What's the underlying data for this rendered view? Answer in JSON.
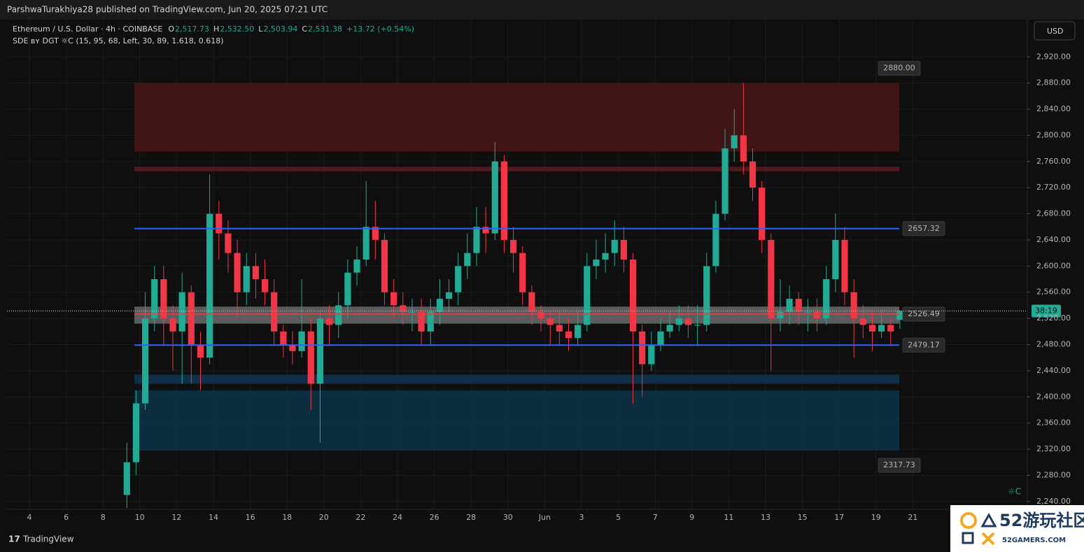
{
  "header": {
    "publisher": "ParshwaTurakhiya28 published on TradingView.com, Jun 20, 2025 07:21 UTC"
  },
  "footer": {
    "logo": "TradingView"
  },
  "watermark": {
    "brand": "52游玩社区",
    "site": "52GAMERS.COM"
  },
  "chart_data": {
    "type": "candlestick",
    "symbol": "Ethereum / U.S. Dollar · 4h · COINBASE",
    "ohlc_legend": [
      {
        "key": "O",
        "value": "2,517.73"
      },
      {
        "key": "H",
        "value": "2,532.50"
      },
      {
        "key": "L",
        "value": "2,503.94"
      },
      {
        "key": "C",
        "value": "2,531.38"
      }
    ],
    "change": "+13.72 (+0.54%)",
    "indicator": "SDE ʙʏ DGT ☼C (15, 95, 68, Left, 30, 89, 1.618, 0.618)",
    "indicator_icon": "☼C",
    "currency": "USD",
    "countdown": "38:19",
    "up_color": "#22ab94",
    "down_color": "#f23645",
    "ylim": [
      2228,
      2977
    ],
    "yticks": [
      {
        "value": 2240,
        "label": "2,240.00"
      },
      {
        "value": 2280,
        "label": "2,280.00"
      },
      {
        "value": 2320,
        "label": "2,320.00"
      },
      {
        "value": 2360,
        "label": "2,360.00"
      },
      {
        "value": 2400,
        "label": "2,400.00"
      },
      {
        "value": 2440,
        "label": "2,440.00"
      },
      {
        "value": 2480,
        "label": "2,480.00"
      },
      {
        "value": 2520,
        "label": "2,520.00"
      },
      {
        "value": 2560,
        "label": "2,560.00"
      },
      {
        "value": 2600,
        "label": "2,600.00"
      },
      {
        "value": 2640,
        "label": "2,640.00"
      },
      {
        "value": 2680,
        "label": "2,680.00"
      },
      {
        "value": 2720,
        "label": "2,720.00"
      },
      {
        "value": 2760,
        "label": "2,760.00"
      },
      {
        "value": 2800,
        "label": "2,800.00"
      },
      {
        "value": 2840,
        "label": "2,840.00"
      },
      {
        "value": 2880,
        "label": "2,880.00"
      },
      {
        "value": 2920,
        "label": "2,920.00"
      }
    ],
    "xticks": [
      "4",
      "6",
      "8",
      "10",
      "12",
      "14",
      "16",
      "18",
      "20",
      "22",
      "24",
      "26",
      "28",
      "30",
      "Jun",
      "3",
      "5",
      "7",
      "9",
      "11",
      "13",
      "15",
      "17",
      "19",
      "21"
    ],
    "grid": true,
    "zones": [
      {
        "from": 2775,
        "to": 2880,
        "color": "#4a1518"
      },
      {
        "from": 2745,
        "to": 2752,
        "color": "#5a1a1e"
      },
      {
        "from": 2512,
        "to": 2538,
        "color": "#6a6a6a"
      },
      {
        "from": 2420,
        "to": 2434,
        "color": "#0f3550"
      },
      {
        "from": 2317.73,
        "to": 2410,
        "color": "#0c3148"
      }
    ],
    "levels": [
      {
        "value": 2880,
        "label": "2880.00",
        "color": "#4a1518"
      },
      {
        "value": 2657.32,
        "label": "2657.32",
        "color": "#2962ff"
      },
      {
        "value": 2526.49,
        "label": "2526.49",
        "color": "#f23645"
      },
      {
        "value": 2479.17,
        "label": "2479.17",
        "color": "#2962ff"
      },
      {
        "value": 2317.73,
        "label": "2317.73",
        "color": "#0c3148"
      }
    ],
    "open": [
      2250,
      2300,
      2390,
      2520,
      2580,
      2520,
      2500,
      2560,
      2480,
      2460,
      2680,
      2650,
      2620,
      2560,
      2600,
      2580,
      2560,
      2500,
      2480,
      2470,
      2500,
      2420,
      2520,
      2510,
      2540,
      2590,
      2610,
      2660,
      2640,
      2560,
      2540,
      2530,
      2530,
      2500,
      2530,
      2550,
      2560,
      2600,
      2620,
      2660,
      2650,
      2760,
      2640,
      2620,
      2560,
      2530,
      2520,
      2510,
      2500,
      2490,
      2510,
      2600,
      2610,
      2620,
      2640,
      2610,
      2500,
      2450,
      2480,
      2500,
      2510,
      2520,
      2510,
      2510,
      2600,
      2680,
      2780,
      2800,
      2760,
      2720,
      2640,
      2520,
      2530,
      2550,
      2530,
      2530,
      2520,
      2580,
      2640,
      2560,
      2520,
      2510,
      2500,
      2510,
      2517.73
    ],
    "high": [
      2330,
      2410,
      2560,
      2600,
      2600,
      2540,
      2590,
      2570,
      2500,
      2740,
      2700,
      2670,
      2640,
      2620,
      2620,
      2610,
      2580,
      2510,
      2500,
      2580,
      2520,
      2530,
      2540,
      2560,
      2610,
      2630,
      2730,
      2700,
      2650,
      2580,
      2560,
      2550,
      2550,
      2550,
      2580,
      2580,
      2620,
      2650,
      2690,
      2690,
      2790,
      2770,
      2660,
      2630,
      2570,
      2540,
      2530,
      2530,
      2520,
      2530,
      2620,
      2640,
      2650,
      2670,
      2660,
      2620,
      2510,
      2500,
      2520,
      2530,
      2540,
      2540,
      2540,
      2620,
      2700,
      2810,
      2840,
      2880,
      2780,
      2730,
      2650,
      2580,
      2570,
      2560,
      2550,
      2550,
      2600,
      2680,
      2660,
      2580,
      2540,
      2530,
      2530,
      2520,
      2532.5
    ],
    "low": [
      2230,
      2280,
      2380,
      2500,
      2480,
      2440,
      2420,
      2420,
      2410,
      2450,
      2610,
      2590,
      2520,
      2540,
      2550,
      2540,
      2480,
      2460,
      2450,
      2460,
      2380,
      2330,
      2480,
      2490,
      2520,
      2570,
      2600,
      2610,
      2540,
      2520,
      2510,
      2500,
      2480,
      2480,
      2510,
      2530,
      2540,
      2580,
      2600,
      2620,
      2640,
      2620,
      2590,
      2540,
      2510,
      2500,
      2480,
      2480,
      2470,
      2480,
      2500,
      2580,
      2590,
      2600,
      2590,
      2390,
      2400,
      2440,
      2470,
      2490,
      2500,
      2490,
      2480,
      2500,
      2590,
      2670,
      2760,
      2740,
      2700,
      2620,
      2440,
      2500,
      2510,
      2510,
      2500,
      2500,
      2510,
      2560,
      2540,
      2460,
      2490,
      2470,
      2490,
      2480,
      2503.94
    ],
    "close": [
      2300,
      2390,
      2520,
      2580,
      2520,
      2500,
      2560,
      2480,
      2460,
      2680,
      2650,
      2620,
      2560,
      2600,
      2580,
      2560,
      2500,
      2480,
      2470,
      2500,
      2420,
      2520,
      2510,
      2540,
      2590,
      2610,
      2660,
      2640,
      2560,
      2540,
      2530,
      2530,
      2500,
      2530,
      2550,
      2560,
      2600,
      2620,
      2660,
      2650,
      2760,
      2640,
      2620,
      2560,
      2530,
      2520,
      2510,
      2500,
      2490,
      2510,
      2600,
      2610,
      2620,
      2640,
      2610,
      2500,
      2450,
      2480,
      2500,
      2510,
      2520,
      2510,
      2510,
      2600,
      2680,
      2780,
      2800,
      2760,
      2720,
      2640,
      2520,
      2530,
      2550,
      2530,
      2530,
      2520,
      2580,
      2640,
      2560,
      2520,
      2510,
      2500,
      2510,
      2500,
      2531.38
    ]
  }
}
